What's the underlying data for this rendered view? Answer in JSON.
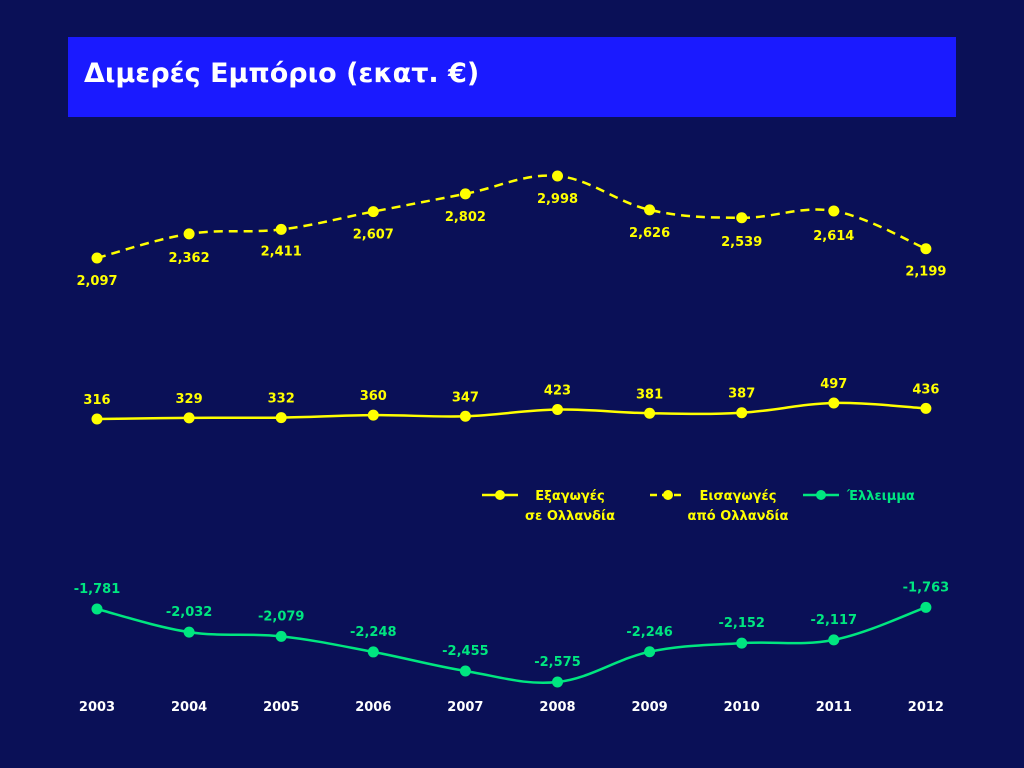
{
  "title": "Διμερές Εμπόριο (εκατ. €)",
  "colors": {
    "background": "#0a1057",
    "title_bar": "#1a1aff",
    "yellow": "#ffff00",
    "green": "#00e680",
    "tick_text": "#ffffff"
  },
  "chart_data": {
    "type": "line",
    "x": [
      "2003",
      "2004",
      "2005",
      "2006",
      "2007",
      "2008",
      "2009",
      "2010",
      "2011",
      "2012"
    ],
    "series": [
      {
        "name": "Εξαγωγές σε Ολλανδία",
        "legend_lines": [
          "Εξαγωγές",
          "σε Ολλανδία"
        ],
        "style": "solid",
        "color": "#ffff00",
        "values": [
          316,
          329,
          332,
          360,
          347,
          423,
          381,
          387,
          497,
          436
        ],
        "labels": [
          "316",
          "329",
          "332",
          "360",
          "347",
          "423",
          "381",
          "387",
          "497",
          "436"
        ]
      },
      {
        "name": "Εισαγωγές από Ολλανδία",
        "legend_lines": [
          "Εισαγωγές",
          "από Ολλανδία"
        ],
        "style": "dashed",
        "color": "#ffff00",
        "values": [
          2097,
          2362,
          2411,
          2607,
          2802,
          2998,
          2626,
          2539,
          2614,
          2199
        ],
        "labels": [
          "2,097",
          "2,362",
          "2,411",
          "2,607",
          "2,802",
          "2,998",
          "2,626",
          "2,539",
          "2,614",
          "2,199"
        ]
      },
      {
        "name": "Έλλειμμα",
        "legend_lines": [
          "Έλλειμμα"
        ],
        "style": "solid",
        "color": "#00e680",
        "values": [
          -1781,
          -2032,
          -2079,
          -2248,
          -2455,
          -2575,
          -2246,
          -2152,
          -2117,
          -1763
        ],
        "labels": [
          "-1,781",
          "-2,032",
          "-2,079",
          "-2,248",
          "-2,455",
          "-2,575",
          "-2,246",
          "-2,152",
          "-2,117",
          "-1,763"
        ]
      }
    ],
    "grid": false,
    "legend_position": "middle-right"
  }
}
